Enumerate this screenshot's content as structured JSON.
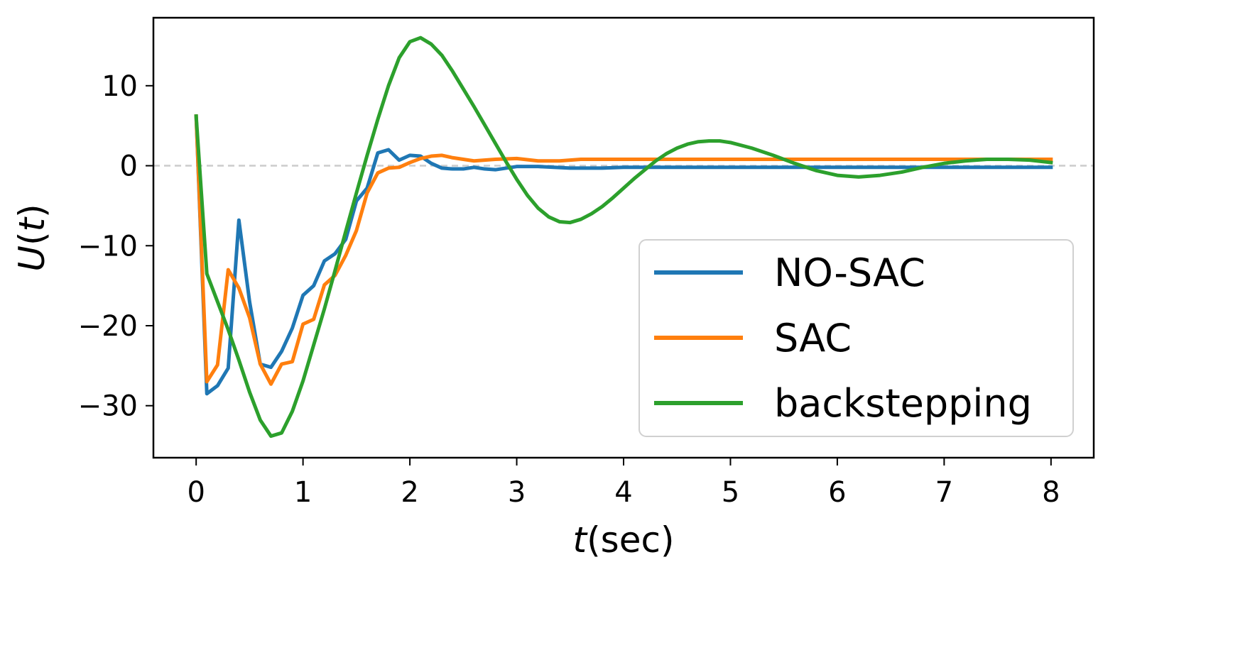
{
  "chart_data": {
    "type": "line",
    "title": "",
    "xlabel": {
      "var": "t",
      "unit": "(sec)"
    },
    "ylabel": {
      "var": "U",
      "paren_open": "(",
      "arg": "t",
      "paren_close": ")"
    },
    "xlim": [
      -0.4,
      8.4
    ],
    "ylim": [
      -36.5,
      18.5
    ],
    "xticks": [
      0,
      1,
      2,
      3,
      4,
      5,
      6,
      7,
      8
    ],
    "yticks": [
      -30,
      -20,
      -10,
      0,
      10
    ],
    "ytick_labels": [
      "−30",
      "−20",
      "−10",
      "0",
      "10"
    ],
    "grid": false,
    "reference_line": {
      "y": 0,
      "style": "dashed",
      "color": "#cccccc"
    },
    "legend_position": "lower-right",
    "series": [
      {
        "name": "NO-SAC",
        "color": "#1f77b4",
        "x": [
          0,
          0.1,
          0.2,
          0.3,
          0.4,
          0.5,
          0.6,
          0.7,
          0.8,
          0.9,
          1.0,
          1.1,
          1.2,
          1.3,
          1.4,
          1.5,
          1.6,
          1.7,
          1.8,
          1.9,
          2.0,
          2.1,
          2.2,
          2.3,
          2.4,
          2.5,
          2.6,
          2.7,
          2.8,
          2.9,
          3.0,
          3.2,
          3.5,
          3.8,
          4.0,
          4.5,
          5.0,
          5.5,
          6.0,
          6.5,
          7.0,
          7.5,
          8.0
        ],
        "y": [
          6.2,
          -28.5,
          -27.5,
          -25.3,
          -6.8,
          -17.0,
          -24.8,
          -25.2,
          -23.2,
          -20.3,
          -16.2,
          -15.0,
          -11.9,
          -11.0,
          -9.2,
          -4.4,
          -2.8,
          1.6,
          2.0,
          0.7,
          1.3,
          1.2,
          0.3,
          -0.3,
          -0.4,
          -0.4,
          -0.2,
          -0.4,
          -0.5,
          -0.3,
          -0.1,
          -0.1,
          -0.3,
          -0.3,
          -0.2,
          -0.2,
          -0.2,
          -0.2,
          -0.2,
          -0.2,
          -0.2,
          -0.2,
          -0.2
        ]
      },
      {
        "name": "SAC",
        "color": "#ff7f0e",
        "x": [
          0,
          0.1,
          0.2,
          0.3,
          0.4,
          0.5,
          0.6,
          0.7,
          0.8,
          0.9,
          1.0,
          1.1,
          1.2,
          1.3,
          1.4,
          1.5,
          1.6,
          1.7,
          1.8,
          1.9,
          2.0,
          2.1,
          2.2,
          2.3,
          2.4,
          2.6,
          2.8,
          3.0,
          3.2,
          3.4,
          3.6,
          3.8,
          4.0,
          4.5,
          5.0,
          5.5,
          6.0,
          6.5,
          7.0,
          7.5,
          8.0
        ],
        "y": [
          6.2,
          -27.0,
          -24.9,
          -13.0,
          -15.3,
          -19.0,
          -24.8,
          -27.3,
          -24.8,
          -24.5,
          -19.8,
          -19.2,
          -14.9,
          -13.7,
          -11.2,
          -8.1,
          -3.4,
          -0.9,
          -0.3,
          -0.2,
          0.4,
          0.9,
          1.2,
          1.3,
          1.0,
          0.6,
          0.8,
          0.9,
          0.6,
          0.6,
          0.8,
          0.8,
          0.8,
          0.8,
          0.8,
          0.8,
          0.8,
          0.8,
          0.8,
          0.8,
          0.8
        ]
      },
      {
        "name": "backstepping",
        "color": "#2ca02c",
        "x": [
          0,
          0.1,
          0.2,
          0.3,
          0.4,
          0.5,
          0.6,
          0.7,
          0.8,
          0.9,
          1.0,
          1.1,
          1.2,
          1.3,
          1.4,
          1.5,
          1.6,
          1.7,
          1.8,
          1.9,
          2.0,
          2.1,
          2.2,
          2.3,
          2.4,
          2.5,
          2.6,
          2.7,
          2.8,
          2.9,
          3.0,
          3.1,
          3.2,
          3.3,
          3.4,
          3.5,
          3.6,
          3.7,
          3.8,
          3.9,
          4.0,
          4.1,
          4.2,
          4.3,
          4.4,
          4.5,
          4.6,
          4.7,
          4.8,
          4.9,
          5.0,
          5.2,
          5.4,
          5.6,
          5.8,
          6.0,
          6.2,
          6.4,
          6.6,
          6.8,
          7.0,
          7.2,
          7.4,
          7.6,
          7.8,
          8.0
        ],
        "y": [
          6.2,
          -13.5,
          -17.0,
          -20.5,
          -24.3,
          -28.3,
          -31.8,
          -33.8,
          -33.4,
          -30.7,
          -26.9,
          -22.4,
          -17.9,
          -13.1,
          -8.2,
          -3.4,
          1.3,
          5.8,
          10.0,
          13.5,
          15.5,
          16.0,
          15.2,
          13.8,
          11.8,
          9.6,
          7.4,
          5.1,
          2.8,
          0.5,
          -1.7,
          -3.7,
          -5.3,
          -6.4,
          -7.0,
          -7.1,
          -6.7,
          -6.0,
          -5.1,
          -4.0,
          -2.8,
          -1.6,
          -0.5,
          0.6,
          1.5,
          2.2,
          2.7,
          3.0,
          3.1,
          3.1,
          2.9,
          2.2,
          1.3,
          0.3,
          -0.6,
          -1.2,
          -1.4,
          -1.2,
          -0.8,
          -0.2,
          0.3,
          0.6,
          0.8,
          0.8,
          0.7,
          0.4
        ]
      }
    ]
  }
}
